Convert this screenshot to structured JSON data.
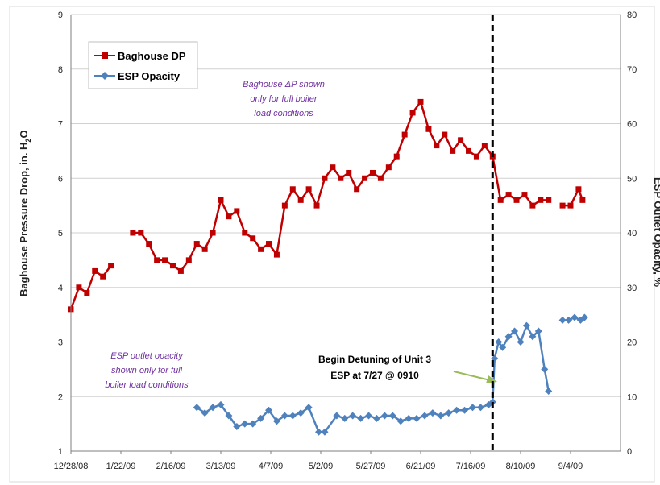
{
  "chart_data": {
    "type": "line",
    "x_ticks": [
      "12/28/08",
      "1/22/09",
      "2/16/09",
      "3/13/09",
      "4/7/09",
      "5/2/09",
      "5/27/09",
      "6/21/09",
      "7/16/09",
      "8/10/09",
      "9/4/09"
    ],
    "ylabel_left": "Baghouse Pressure Drop, in. H",
    "ylabel_left_sub": "2",
    "ylabel_left_tail": "O",
    "ylabel_right": "ESP Outlet Opacity, %",
    "ylim_left": [
      1,
      9
    ],
    "ylim_right": [
      0,
      80
    ],
    "yticks_left": [
      "1",
      "2",
      "3",
      "4",
      "5",
      "6",
      "7",
      "8",
      "9"
    ],
    "yticks_right": [
      "0",
      "10",
      "20",
      "30",
      "40",
      "50",
      "60",
      "70",
      "80"
    ],
    "grid": "horizontal",
    "legend_position": "top-left",
    "series": [
      {
        "name": "Baghouse DP",
        "axis": "left",
        "color": "#c00000",
        "marker": "square",
        "points": [
          [
            "12/28/08",
            3.6
          ],
          [
            "1/1/09",
            4.0
          ],
          [
            "1/5/09",
            3.9
          ],
          [
            "1/9/09",
            4.3
          ],
          [
            "1/13/09",
            4.2
          ],
          [
            "1/17/09",
            4.4
          ],
          [
            "1/28/09",
            5.0
          ],
          [
            "2/1/09",
            5.0
          ],
          [
            "2/5/09",
            4.8
          ],
          [
            "2/9/09",
            4.5
          ],
          [
            "2/13/09",
            4.5
          ],
          [
            "2/17/09",
            4.4
          ],
          [
            "2/21/09",
            4.3
          ],
          [
            "2/25/09",
            4.5
          ],
          [
            "3/1/09",
            4.8
          ],
          [
            "3/5/09",
            4.7
          ],
          [
            "3/9/09",
            5.0
          ],
          [
            "3/13/09",
            5.6
          ],
          [
            "3/17/09",
            5.3
          ],
          [
            "3/21/09",
            5.4
          ],
          [
            "3/25/09",
            5.0
          ],
          [
            "3/29/09",
            4.9
          ],
          [
            "4/2/09",
            4.7
          ],
          [
            "4/6/09",
            4.8
          ],
          [
            "4/10/09",
            4.6
          ],
          [
            "4/14/09",
            5.5
          ],
          [
            "4/18/09",
            5.8
          ],
          [
            "4/22/09",
            5.6
          ],
          [
            "4/26/09",
            5.8
          ],
          [
            "4/30/09",
            5.5
          ],
          [
            "5/4/09",
            6.0
          ],
          [
            "5/8/09",
            6.2
          ],
          [
            "5/12/09",
            6.0
          ],
          [
            "5/16/09",
            6.1
          ],
          [
            "5/20/09",
            5.8
          ],
          [
            "5/24/09",
            6.0
          ],
          [
            "5/28/09",
            6.1
          ],
          [
            "6/1/09",
            6.0
          ],
          [
            "6/5/09",
            6.2
          ],
          [
            "6/9/09",
            6.4
          ],
          [
            "6/13/09",
            6.8
          ],
          [
            "6/17/09",
            7.2
          ],
          [
            "6/21/09",
            7.4
          ],
          [
            "6/25/09",
            6.9
          ],
          [
            "6/29/09",
            6.6
          ],
          [
            "7/3/09",
            6.8
          ],
          [
            "7/7/09",
            6.5
          ],
          [
            "7/11/09",
            6.7
          ],
          [
            "7/15/09",
            6.5
          ],
          [
            "7/19/09",
            6.4
          ],
          [
            "7/23/09",
            6.6
          ],
          [
            "7/27/09",
            6.4
          ],
          [
            "7/31/09",
            5.6
          ],
          [
            "8/4/09",
            5.7
          ],
          [
            "8/8/09",
            5.6
          ],
          [
            "8/12/09",
            5.7
          ],
          [
            "8/16/09",
            5.5
          ],
          [
            "8/20/09",
            5.6
          ],
          [
            "8/24/09",
            5.6
          ],
          [
            "8/31/09",
            5.5
          ],
          [
            "9/4/09",
            5.5
          ],
          [
            "9/8/09",
            5.8
          ],
          [
            "9/10/09",
            5.6
          ]
        ]
      },
      {
        "name": "ESP Opacity",
        "axis": "right",
        "color": "#4f81bd",
        "marker": "diamond",
        "points": [
          [
            "3/1/09",
            8.0
          ],
          [
            "3/5/09",
            7.0
          ],
          [
            "3/9/09",
            8.0
          ],
          [
            "3/13/09",
            8.5
          ],
          [
            "3/17/09",
            6.5
          ],
          [
            "3/21/09",
            4.5
          ],
          [
            "3/25/09",
            5.0
          ],
          [
            "3/29/09",
            5.0
          ],
          [
            "4/2/09",
            6.0
          ],
          [
            "4/6/09",
            7.5
          ],
          [
            "4/10/09",
            5.5
          ],
          [
            "4/14/09",
            6.5
          ],
          [
            "4/18/09",
            6.5
          ],
          [
            "4/22/09",
            7.0
          ],
          [
            "4/26/09",
            8.0
          ],
          [
            "5/1/09",
            3.5
          ],
          [
            "5/4/09",
            3.5
          ],
          [
            "5/10/09",
            6.5
          ],
          [
            "5/14/09",
            6.0
          ],
          [
            "5/18/09",
            6.5
          ],
          [
            "5/22/09",
            6.0
          ],
          [
            "5/26/09",
            6.5
          ],
          [
            "5/30/09",
            6.0
          ],
          [
            "6/3/09",
            6.5
          ],
          [
            "6/7/09",
            6.5
          ],
          [
            "6/11/09",
            5.5
          ],
          [
            "6/15/09",
            6.0
          ],
          [
            "6/19/09",
            6.0
          ],
          [
            "6/23/09",
            6.5
          ],
          [
            "6/27/09",
            7.0
          ],
          [
            "7/1/09",
            6.5
          ],
          [
            "7/5/09",
            7.0
          ],
          [
            "7/9/09",
            7.5
          ],
          [
            "7/13/09",
            7.5
          ],
          [
            "7/17/09",
            8.0
          ],
          [
            "7/21/09",
            8.0
          ],
          [
            "7/25/09",
            8.5
          ],
          [
            "7/27/09",
            9.0
          ],
          [
            "7/28/09",
            17.0
          ],
          [
            "7/30/09",
            20.0
          ],
          [
            "8/1/09",
            19.0
          ],
          [
            "8/4/09",
            21.0
          ],
          [
            "8/7/09",
            22.0
          ],
          [
            "8/10/09",
            20.0
          ],
          [
            "8/13/09",
            23.0
          ],
          [
            "8/16/09",
            21.0
          ],
          [
            "8/19/09",
            22.0
          ],
          [
            "8/22/09",
            15.0
          ],
          [
            "8/24/09",
            11.0
          ],
          [
            "8/31/09",
            24.0
          ],
          [
            "9/3/09",
            24.0
          ],
          [
            "9/6/09",
            24.5
          ],
          [
            "9/9/09",
            24.0
          ],
          [
            "9/11/09",
            24.5
          ]
        ]
      }
    ],
    "annotations": {
      "bh_note": [
        "Baghouse ΔP shown",
        "only for full boiler",
        "load conditions"
      ],
      "esp_note": [
        "ESP outlet opacity",
        "shown only for full",
        "boiler load conditions"
      ],
      "detune_note": [
        "Begin Detuning of Unit 3",
        "ESP at 7/27 @ 0910"
      ]
    },
    "vline_date": "7/27/09"
  },
  "colors": {
    "baghouse": "#c00000",
    "esp": "#4f81bd",
    "arrow": "#9bbb59",
    "note": "#7030a0"
  }
}
